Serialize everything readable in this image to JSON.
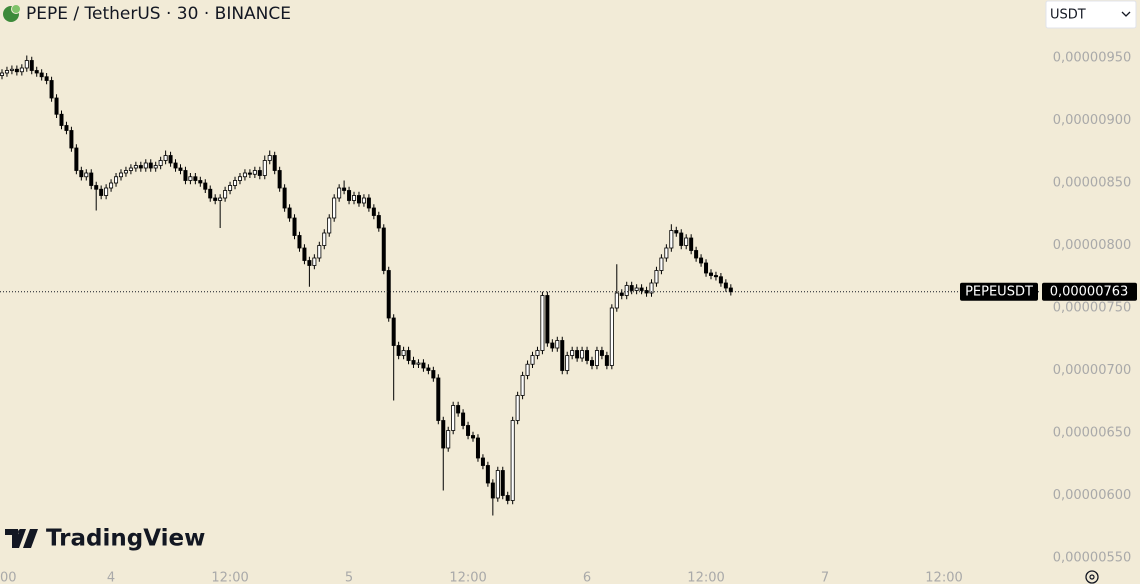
{
  "chart_data": {
    "type": "candlestick",
    "title": "PEPE / TetherUS · 30 · BINANCE",
    "currency": "USDT",
    "brand": "TradingView",
    "symbol": "PEPEUSDT",
    "last_price": {
      "value": 7.63e-06,
      "label": "0,00000763"
    },
    "up_color": "#ffffff",
    "down_color": "#000000",
    "wick_color": "#000000",
    "open": [
      9.36e-06,
      9.38e-06,
      9.4e-06,
      9.41e-06,
      9.39e-06,
      9.42e-06,
      9.48e-06,
      9.4e-06,
      9.38e-06,
      9.35e-06,
      9.32e-06,
      9.18e-06,
      9.05e-06,
      8.96e-06,
      8.92e-06,
      8.78e-06,
      8.6e-06,
      8.55e-06,
      8.58e-06,
      8.48e-06,
      8.45e-06,
      8.4e-06,
      8.46e-06,
      8.5e-06,
      8.55e-06,
      8.58e-06,
      8.6e-06,
      8.62e-06,
      8.64e-06,
      8.62e-06,
      8.66e-06,
      8.62e-06,
      8.64e-06,
      8.68e-06,
      8.72e-06,
      8.66e-06,
      8.62e-06,
      8.6e-06,
      8.52e-06,
      8.55e-06,
      8.52e-06,
      8.5e-06,
      8.45e-06,
      8.38e-06,
      8.36e-06,
      8.38e-06,
      8.44e-06,
      8.48e-06,
      8.52e-06,
      8.55e-06,
      8.58e-06,
      8.57e-06,
      8.6e-06,
      8.56e-06,
      8.68e-06,
      8.72e-06,
      8.6e-06,
      8.46e-06,
      8.3e-06,
      8.22e-06,
      8.08e-06,
      7.98e-06,
      7.88e-06,
      7.84e-06,
      7.9e-06,
      8e-06,
      8.1e-06,
      8.22e-06,
      8.38e-06,
      8.46e-06,
      8.44e-06,
      8.36e-06,
      8.4e-06,
      8.34e-06,
      8.38e-06,
      8.3e-06,
      8.24e-06,
      8.14e-06,
      7.8e-06,
      7.42e-06,
      7.2e-06,
      7.12e-06,
      7.16e-06,
      7.08e-06,
      7.05e-06,
      7.06e-06,
      7.02e-06,
      7e-06,
      6.94e-06,
      6.6e-06,
      6.38e-06,
      6.52e-06,
      6.72e-06,
      6.66e-06,
      6.56e-06,
      6.48e-06,
      6.46e-06,
      6.3e-06,
      6.24e-06,
      6.1e-06,
      5.98e-06,
      6.2e-06,
      6e-06,
      5.96e-06,
      6.6e-06,
      6.8e-06,
      6.96e-06,
      7.05e-06,
      7.12e-06,
      7.16e-06,
      7.6e-06,
      7.22e-06,
      7.18e-06,
      7.24e-06,
      7e-06,
      7.12e-06,
      7.16e-06,
      7.1e-06,
      7.16e-06,
      7.08e-06,
      7.04e-06,
      7.16e-06,
      7.12e-06,
      7.04e-06,
      7.5e-06,
      7.62e-06,
      7.6e-06,
      7.68e-06,
      7.64e-06,
      7.66e-06,
      7.64e-06,
      7.62e-06,
      7.7e-06,
      7.8e-06,
      7.9e-06,
      7.98e-06,
      8.12e-06,
      8.1e-06,
      8e-06,
      8.06e-06,
      7.96e-06,
      7.9e-06,
      7.86e-06,
      7.78e-06,
      7.76e-06,
      7.75e-06,
      7.7e-06,
      7.66e-06
    ],
    "high": [
      9.41e-06,
      9.43e-06,
      9.44e-06,
      9.44e-06,
      9.45e-06,
      9.52e-06,
      9.51e-06,
      9.43e-06,
      9.41e-06,
      9.38e-06,
      9.35e-06,
      9.21e-06,
      9.08e-06,
      8.99e-06,
      8.95e-06,
      8.81e-06,
      8.63e-06,
      8.61e-06,
      8.61e-06,
      8.51e-06,
      8.48e-06,
      8.49e-06,
      8.53e-06,
      8.58e-06,
      8.61e-06,
      8.63e-06,
      8.65e-06,
      8.67e-06,
      8.67e-06,
      8.69e-06,
      8.69e-06,
      8.67e-06,
      8.71e-06,
      8.76e-06,
      8.75e-06,
      8.69e-06,
      8.65e-06,
      8.63e-06,
      8.58e-06,
      8.58e-06,
      8.55e-06,
      8.53e-06,
      8.48e-06,
      8.41e-06,
      8.41e-06,
      8.47e-06,
      8.51e-06,
      8.55e-06,
      8.58e-06,
      8.61e-06,
      8.61e-06,
      8.63e-06,
      8.63e-06,
      8.72e-06,
      8.76e-06,
      8.75e-06,
      8.63e-06,
      8.49e-06,
      8.33e-06,
      8.25e-06,
      8.11e-06,
      8.01e-06,
      7.91e-06,
      7.93e-06,
      8.03e-06,
      8.13e-06,
      8.25e-06,
      8.41e-06,
      8.49e-06,
      8.52e-06,
      8.47e-06,
      8.43e-06,
      8.43e-06,
      8.41e-06,
      8.41e-06,
      8.33e-06,
      8.27e-06,
      8.17e-06,
      7.83e-06,
      7.45e-06,
      7.23e-06,
      7.19e-06,
      7.19e-06,
      7.11e-06,
      7.09e-06,
      7.09e-06,
      7.05e-06,
      7.03e-06,
      6.97e-06,
      6.63e-06,
      6.55e-06,
      6.75e-06,
      6.75e-06,
      6.69e-06,
      6.59e-06,
      6.51e-06,
      6.49e-06,
      6.33e-06,
      6.27e-06,
      6.13e-06,
      6.23e-06,
      6.23e-06,
      6.03e-06,
      6.63e-06,
      6.83e-06,
      6.99e-06,
      7.08e-06,
      7.15e-06,
      7.19e-06,
      7.63e-06,
      7.63e-06,
      7.25e-06,
      7.27e-06,
      7.27e-06,
      7.15e-06,
      7.19e-06,
      7.19e-06,
      7.19e-06,
      7.19e-06,
      7.11e-06,
      7.19e-06,
      7.19e-06,
      7.15e-06,
      7.53e-06,
      7.85e-06,
      7.65e-06,
      7.71e-06,
      7.71e-06,
      7.69e-06,
      7.69e-06,
      7.67e-06,
      7.73e-06,
      7.83e-06,
      7.93e-06,
      8.01e-06,
      8.17e-06,
      8.15e-06,
      8.13e-06,
      8.09e-06,
      8.09e-06,
      7.99e-06,
      7.93e-06,
      7.89e-06,
      7.81e-06,
      7.79e-06,
      7.78e-06,
      7.73e-06,
      7.69e-06
    ],
    "low": [
      9.33e-06,
      9.35e-06,
      9.37e-06,
      9.36e-06,
      9.36e-06,
      9.39e-06,
      9.37e-06,
      9.35e-06,
      9.32e-06,
      9.29e-06,
      9.15e-06,
      9.02e-06,
      8.93e-06,
      8.89e-06,
      8.75e-06,
      8.57e-06,
      8.52e-06,
      8.52e-06,
      8.45e-06,
      8.28e-06,
      8.37e-06,
      8.37e-06,
      8.43e-06,
      8.47e-06,
      8.52e-06,
      8.55e-06,
      8.57e-06,
      8.59e-06,
      8.59e-06,
      8.59e-06,
      8.59e-06,
      8.59e-06,
      8.61e-06,
      8.65e-06,
      8.63e-06,
      8.59e-06,
      8.57e-06,
      8.49e-06,
      8.49e-06,
      8.49e-06,
      8.47e-06,
      8.42e-06,
      8.35e-06,
      8.33e-06,
      8.14e-06,
      8.35e-06,
      8.41e-06,
      8.45e-06,
      8.49e-06,
      8.52e-06,
      8.54e-06,
      8.54e-06,
      8.53e-06,
      8.53e-06,
      8.65e-06,
      8.57e-06,
      8.43e-06,
      8.27e-06,
      8.19e-06,
      8.05e-06,
      7.95e-06,
      7.85e-06,
      7.67e-06,
      7.81e-06,
      7.87e-06,
      7.97e-06,
      8.07e-06,
      8.19e-06,
      8.35e-06,
      8.41e-06,
      8.33e-06,
      8.33e-06,
      8.31e-06,
      8.31e-06,
      8.27e-06,
      8.21e-06,
      8.11e-06,
      7.77e-06,
      7.39e-06,
      6.76e-06,
      7.09e-06,
      7.09e-06,
      7.05e-06,
      7.02e-06,
      7.02e-06,
      6.99e-06,
      6.97e-06,
      6.91e-06,
      6.57e-06,
      6.04e-06,
      6.35e-06,
      6.49e-06,
      6.63e-06,
      6.53e-06,
      6.45e-06,
      6.43e-06,
      6.27e-06,
      6.21e-06,
      6.07e-06,
      5.84e-06,
      5.95e-06,
      5.97e-06,
      5.93e-06,
      5.93e-06,
      6.57e-06,
      6.77e-06,
      6.93e-06,
      7.02e-06,
      7.09e-06,
      7.13e-06,
      7.19e-06,
      7.15e-06,
      7.15e-06,
      6.97e-06,
      6.97e-06,
      7.09e-06,
      7.07e-06,
      7.07e-06,
      7.05e-06,
      7.01e-06,
      7.01e-06,
      7.09e-06,
      7.01e-06,
      7.01e-06,
      7.47e-06,
      7.57e-06,
      7.57e-06,
      7.61e-06,
      7.61e-06,
      7.61e-06,
      7.59e-06,
      7.59e-06,
      7.67e-06,
      7.77e-06,
      7.87e-06,
      7.95e-06,
      8.07e-06,
      7.97e-06,
      7.97e-06,
      7.93e-06,
      7.87e-06,
      7.83e-06,
      7.75e-06,
      7.73e-06,
      7.72e-06,
      7.67e-06,
      7.63e-06,
      7.6e-06
    ],
    "close": [
      9.38e-06,
      9.4e-06,
      9.41e-06,
      9.39e-06,
      9.42e-06,
      9.48e-06,
      9.4e-06,
      9.38e-06,
      9.35e-06,
      9.32e-06,
      9.18e-06,
      9.05e-06,
      8.96e-06,
      8.92e-06,
      8.78e-06,
      8.6e-06,
      8.55e-06,
      8.58e-06,
      8.48e-06,
      8.45e-06,
      8.4e-06,
      8.46e-06,
      8.5e-06,
      8.55e-06,
      8.58e-06,
      8.6e-06,
      8.62e-06,
      8.64e-06,
      8.62e-06,
      8.66e-06,
      8.62e-06,
      8.64e-06,
      8.68e-06,
      8.72e-06,
      8.66e-06,
      8.62e-06,
      8.6e-06,
      8.52e-06,
      8.55e-06,
      8.52e-06,
      8.5e-06,
      8.45e-06,
      8.38e-06,
      8.36e-06,
      8.38e-06,
      8.44e-06,
      8.48e-06,
      8.52e-06,
      8.55e-06,
      8.58e-06,
      8.57e-06,
      8.6e-06,
      8.56e-06,
      8.68e-06,
      8.72e-06,
      8.6e-06,
      8.46e-06,
      8.3e-06,
      8.22e-06,
      8.08e-06,
      7.98e-06,
      7.88e-06,
      7.84e-06,
      7.9e-06,
      8e-06,
      8.1e-06,
      8.22e-06,
      8.38e-06,
      8.46e-06,
      8.44e-06,
      8.36e-06,
      8.4e-06,
      8.34e-06,
      8.38e-06,
      8.3e-06,
      8.24e-06,
      8.14e-06,
      7.8e-06,
      7.42e-06,
      7.2e-06,
      7.12e-06,
      7.16e-06,
      7.08e-06,
      7.05e-06,
      7.06e-06,
      7.02e-06,
      7e-06,
      6.94e-06,
      6.6e-06,
      6.38e-06,
      6.52e-06,
      6.72e-06,
      6.66e-06,
      6.56e-06,
      6.48e-06,
      6.46e-06,
      6.3e-06,
      6.24e-06,
      6.1e-06,
      5.98e-06,
      6.2e-06,
      6e-06,
      5.96e-06,
      6.6e-06,
      6.8e-06,
      6.96e-06,
      7.05e-06,
      7.12e-06,
      7.16e-06,
      7.6e-06,
      7.22e-06,
      7.18e-06,
      7.24e-06,
      7e-06,
      7.12e-06,
      7.16e-06,
      7.1e-06,
      7.16e-06,
      7.08e-06,
      7.04e-06,
      7.16e-06,
      7.12e-06,
      7.04e-06,
      7.5e-06,
      7.62e-06,
      7.6e-06,
      7.68e-06,
      7.64e-06,
      7.66e-06,
      7.64e-06,
      7.62e-06,
      7.7e-06,
      7.8e-06,
      7.9e-06,
      7.98e-06,
      8.12e-06,
      8.1e-06,
      8e-06,
      8.06e-06,
      7.96e-06,
      7.9e-06,
      7.86e-06,
      7.78e-06,
      7.76e-06,
      7.75e-06,
      7.7e-06,
      7.66e-06,
      7.63e-06
    ],
    "xlim": [
      -0.4,
      209.4
    ],
    "xticks": [
      {
        "value": -1,
        "label": "00"
      },
      {
        "value": 22,
        "label": "4"
      },
      {
        "value": 46,
        "label": "12:00"
      },
      {
        "value": 70,
        "label": "5"
      },
      {
        "value": 94,
        "label": "12:00"
      },
      {
        "value": 118,
        "label": "6"
      },
      {
        "value": 142,
        "label": "12:00"
      },
      {
        "value": 166,
        "label": "7"
      },
      {
        "value": 190,
        "label": "12:00"
      }
    ],
    "ylim": [
      5.436e-06,
      9.964e-06
    ],
    "yticks": [
      {
        "value": 9.5e-06,
        "label": "0,00000950"
      },
      {
        "value": 9e-06,
        "label": "0,00000900"
      },
      {
        "value": 8.5e-06,
        "label": "0,00000850"
      },
      {
        "value": 8e-06,
        "label": "0,00000800"
      },
      {
        "value": 7.5e-06,
        "label": "0,00000750"
      },
      {
        "value": 7e-06,
        "label": "0,00000700"
      },
      {
        "value": 6.5e-06,
        "label": "0,00000650"
      },
      {
        "value": 6e-06,
        "label": "0,00000600"
      },
      {
        "value": 5.5e-06,
        "label": "0,00000550"
      }
    ]
  }
}
